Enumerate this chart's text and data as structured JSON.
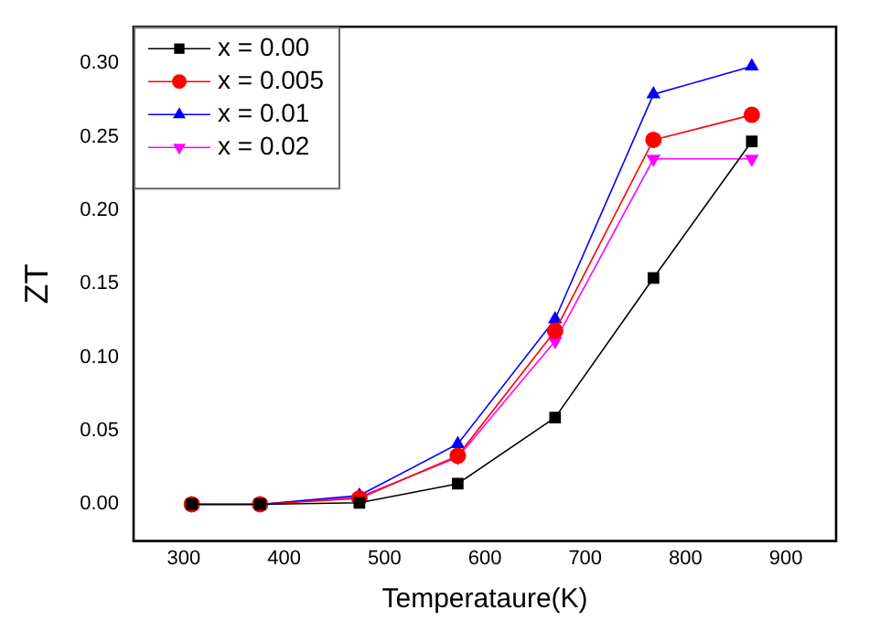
{
  "chart_data": {
    "type": "line",
    "xlabel": "Temperataure(K)",
    "ylabel": "ZT",
    "x": [
      308,
      376,
      475,
      573,
      670,
      768,
      866
    ],
    "series": [
      {
        "name": "x = 0.00",
        "color": "#000000",
        "marker": "square",
        "values": [
          0,
          0,
          0.001,
          0.014,
          0.059,
          0.154,
          0.247
        ]
      },
      {
        "name": "x = 0.005",
        "color": "#ff0000",
        "marker": "circle",
        "values": [
          0,
          0,
          0.004,
          0.033,
          0.118,
          0.248,
          0.265
        ]
      },
      {
        "name": "x = 0.01",
        "color": "#0000ff",
        "marker": "triangle",
        "values": [
          0,
          0,
          0.006,
          0.041,
          0.126,
          0.279,
          0.298
        ]
      },
      {
        "name": "x = 0.02",
        "color": "#ff00ff",
        "marker": "triangle-down",
        "values": [
          0,
          0,
          0.005,
          0.032,
          0.111,
          0.235,
          0.235
        ]
      }
    ],
    "xlim": [
      250,
      950
    ],
    "xticks": [
      300,
      400,
      500,
      600,
      700,
      800,
      900
    ],
    "ylim": [
      -0.025,
      0.325
    ],
    "yticks": [
      {
        "value": 0,
        "label": "0.00"
      },
      0.05,
      {
        "value": 0.1,
        "label": "0.10"
      },
      0.15,
      {
        "value": 0.2,
        "label": "0.20"
      },
      0.25,
      {
        "value": 0.3,
        "label": "0.30"
      }
    ],
    "grid": false,
    "legend": "top left",
    "line_style": "solid"
  }
}
